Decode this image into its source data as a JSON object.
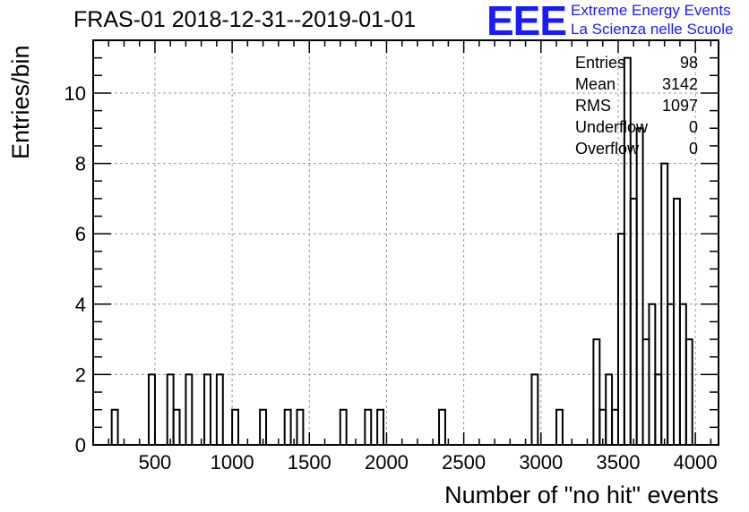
{
  "chart_data": {
    "type": "bar",
    "title": "FRAS-01 2018-12-31--2019-01-01",
    "xlabel": "Number of \"no hit\" events",
    "ylabel": "Entries/bin",
    "xlim": [
      100,
      4150
    ],
    "ylim": [
      0,
      11.5
    ],
    "grid": true,
    "x_ticks": [
      500,
      1000,
      1500,
      2000,
      2500,
      3000,
      3500,
      4000
    ],
    "y_ticks": [
      0,
      2,
      4,
      6,
      8,
      10
    ],
    "bin_width": 40,
    "bins": [
      {
        "x": 220,
        "count": 1
      },
      {
        "x": 460,
        "count": 2
      },
      {
        "x": 580,
        "count": 2
      },
      {
        "x": 620,
        "count": 1
      },
      {
        "x": 700,
        "count": 2
      },
      {
        "x": 820,
        "count": 2
      },
      {
        "x": 900,
        "count": 2
      },
      {
        "x": 1000,
        "count": 1
      },
      {
        "x": 1180,
        "count": 1
      },
      {
        "x": 1340,
        "count": 1
      },
      {
        "x": 1420,
        "count": 1
      },
      {
        "x": 1700,
        "count": 1
      },
      {
        "x": 1860,
        "count": 1
      },
      {
        "x": 1940,
        "count": 1
      },
      {
        "x": 2340,
        "count": 1
      },
      {
        "x": 2940,
        "count": 2
      },
      {
        "x": 3100,
        "count": 1
      },
      {
        "x": 3340,
        "count": 3
      },
      {
        "x": 3380,
        "count": 1
      },
      {
        "x": 3420,
        "count": 2
      },
      {
        "x": 3460,
        "count": 1
      },
      {
        "x": 3500,
        "count": 6
      },
      {
        "x": 3540,
        "count": 11
      },
      {
        "x": 3580,
        "count": 7
      },
      {
        "x": 3620,
        "count": 9
      },
      {
        "x": 3660,
        "count": 3
      },
      {
        "x": 3700,
        "count": 4
      },
      {
        "x": 3740,
        "count": 2
      },
      {
        "x": 3780,
        "count": 8
      },
      {
        "x": 3820,
        "count": 4
      },
      {
        "x": 3860,
        "count": 7
      },
      {
        "x": 3900,
        "count": 4
      },
      {
        "x": 3940,
        "count": 3
      }
    ],
    "stats": [
      {
        "key": "Entries",
        "value": "98"
      },
      {
        "key": "Mean",
        "value": "3142"
      },
      {
        "key": "RMS",
        "value": "1097"
      },
      {
        "key": "Underflow",
        "value": "0"
      },
      {
        "key": "Overflow",
        "value": "0"
      }
    ]
  },
  "logo": {
    "text": "EEE",
    "line1": "Extreme Energy Events",
    "line2": "La Scienza nelle Scuole",
    "color": "#1a1aff"
  }
}
